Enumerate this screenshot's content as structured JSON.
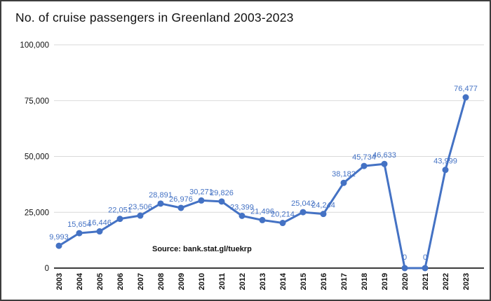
{
  "title": "No. of cruise passengers in Greenland 2003-2023",
  "source_note": "Source: bank.stat.gl/tuekrp",
  "colors": {
    "line": "#4472c4",
    "marker": "#4472c4",
    "data_label": "#4472c4",
    "gridline": "#d9d9d9",
    "axis": "#3c3c3c",
    "tick_text": "#111111"
  },
  "chart_data": {
    "type": "line",
    "title": "No. of cruise passengers in Greenland 2003-2023",
    "categories": [
      "2003",
      "2004",
      "2005",
      "2006",
      "2007",
      "2008",
      "2009",
      "2010",
      "2011",
      "2012",
      "2013",
      "2014",
      "2015",
      "2016",
      "2017",
      "2018",
      "2019",
      "2020",
      "2021",
      "2022",
      "2023"
    ],
    "values": [
      9993,
      15654,
      16446,
      22051,
      23506,
      28891,
      26976,
      30271,
      29826,
      23399,
      21496,
      20214,
      25042,
      24244,
      38182,
      45734,
      46633,
      0,
      0,
      43999,
      76477
    ],
    "data_labels": [
      "9,993",
      "15,654",
      "16,446",
      "22,051",
      "23,506",
      "28,891",
      "26,976",
      "30,271",
      "29,826",
      "23,399",
      "21,496",
      "20,214",
      "25,042",
      "24,244",
      "38,182",
      "45,734",
      "46,633",
      "0",
      "0",
      "43,999",
      "76,477"
    ],
    "xlabel": "",
    "ylabel": "",
    "ylim": [
      0,
      100000
    ],
    "y_ticks": [
      {
        "value": 0,
        "label": "0"
      },
      {
        "value": 25000,
        "label": "25,000"
      },
      {
        "value": 50000,
        "label": "50,000"
      },
      {
        "value": 75000,
        "label": "75,000"
      },
      {
        "value": 100000,
        "label": "100,000"
      }
    ],
    "grid": true,
    "legend": "none",
    "source": "Source: bank.stat.gl/tuekrp"
  }
}
